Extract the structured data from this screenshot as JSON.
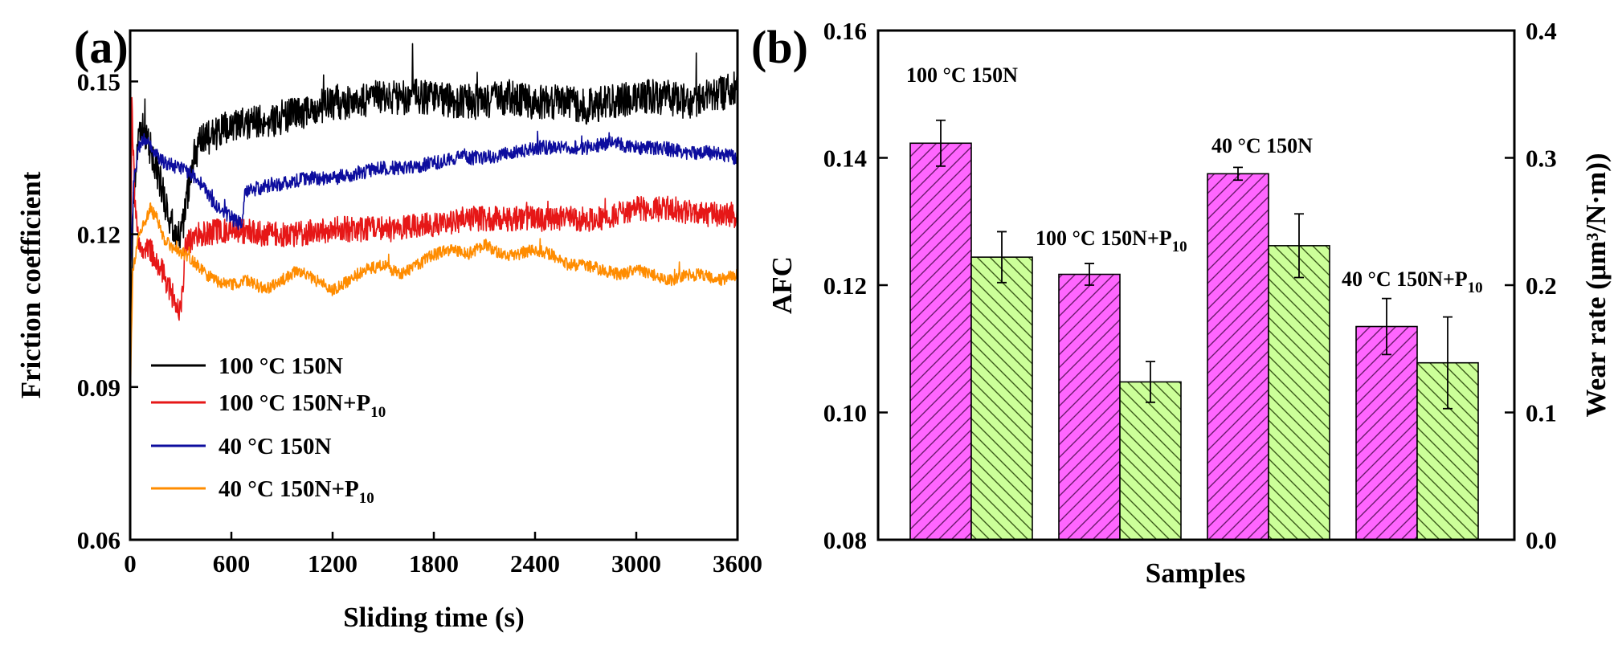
{
  "figure": {
    "panel_a_label": "(a)",
    "panel_b_label": "(b)"
  },
  "chart_data": [
    {
      "type": "line",
      "panel": "(a)",
      "xlabel": "Sliding time (s)",
      "ylabel": "Friction coefficient",
      "xlim": [
        0,
        3600
      ],
      "ylim": [
        0.06,
        0.16
      ],
      "xticks": [
        0,
        600,
        1200,
        1800,
        2400,
        3000,
        3600
      ],
      "yticks": [
        0.06,
        0.09,
        0.12,
        0.15
      ],
      "xtick_labels": [
        "0",
        "600",
        "1200",
        "1800",
        "2400",
        "3000",
        "3600"
      ],
      "ytick_labels": [
        "0.06",
        "0.09",
        "0.12",
        "0.15"
      ],
      "legend_position": "lower-left",
      "series": [
        {
          "name": "100 °C 150N",
          "label_main": "100 °C 150N",
          "label_sub": "",
          "color": "#000000",
          "noise": 0.0035,
          "x": [
            0,
            20,
            50,
            80,
            120,
            180,
            240,
            300,
            340,
            380,
            450,
            600,
            750,
            900,
            1050,
            1200,
            1350,
            1500,
            1650,
            1800,
            1950,
            2100,
            2250,
            2400,
            2550,
            2700,
            2850,
            3000,
            3150,
            3300,
            3450,
            3600
          ],
          "y": [
            0.097,
            0.128,
            0.138,
            0.141,
            0.137,
            0.13,
            0.122,
            0.119,
            0.128,
            0.136,
            0.139,
            0.141,
            0.142,
            0.143,
            0.144,
            0.146,
            0.146,
            0.147,
            0.147,
            0.147,
            0.146,
            0.146,
            0.147,
            0.146,
            0.146,
            0.145,
            0.146,
            0.147,
            0.147,
            0.146,
            0.147,
            0.149
          ]
        },
        {
          "name": "100 °C 150N+P10",
          "label_main": "100 °C 150N+P",
          "label_sub": "10",
          "color": "#e61717",
          "noise": 0.0025,
          "x": [
            0,
            10,
            30,
            60,
            100,
            150,
            200,
            250,
            300,
            330,
            400,
            600,
            800,
            1000,
            1200,
            1400,
            1600,
            1800,
            2000,
            2200,
            2400,
            2600,
            2800,
            3000,
            3200,
            3400,
            3600
          ],
          "y": [
            0.1,
            0.145,
            0.125,
            0.116,
            0.118,
            0.115,
            0.112,
            0.108,
            0.105,
            0.118,
            0.12,
            0.121,
            0.12,
            0.12,
            0.121,
            0.121,
            0.121,
            0.122,
            0.123,
            0.123,
            0.123,
            0.123,
            0.123,
            0.125,
            0.125,
            0.124,
            0.124
          ]
        },
        {
          "name": "40 °C 150N",
          "label_main": "40 °C 150N",
          "label_sub": "",
          "color": "#0d0d9e",
          "noise": 0.0014,
          "x": [
            0,
            20,
            50,
            80,
            120,
            200,
            300,
            400,
            500,
            600,
            660,
            680,
            750,
            900,
            1050,
            1200,
            1350,
            1500,
            1650,
            1800,
            1950,
            2100,
            2250,
            2400,
            2550,
            2700,
            2850,
            3000,
            3150,
            3300,
            3450,
            3600
          ],
          "y": [
            0.11,
            0.13,
            0.137,
            0.139,
            0.137,
            0.134,
            0.133,
            0.131,
            0.126,
            0.123,
            0.122,
            0.128,
            0.129,
            0.13,
            0.131,
            0.131,
            0.132,
            0.133,
            0.133,
            0.134,
            0.135,
            0.135,
            0.136,
            0.137,
            0.137,
            0.137,
            0.138,
            0.137,
            0.137,
            0.136,
            0.136,
            0.135
          ]
        },
        {
          "name": "40 °C 150N+P10",
          "label_main": "40 °C 150N+P",
          "label_sub": "10",
          "color": "#ff8c00",
          "noise": 0.0012,
          "x": [
            0,
            15,
            40,
            80,
            120,
            160,
            200,
            260,
            330,
            420,
            500,
            600,
            700,
            800,
            900,
            1000,
            1100,
            1200,
            1300,
            1400,
            1500,
            1600,
            1700,
            1800,
            1900,
            2000,
            2100,
            2200,
            2300,
            2400,
            2500,
            2600,
            2700,
            2800,
            2900,
            3000,
            3100,
            3200,
            3300,
            3400,
            3500,
            3600
          ],
          "y": [
            0.086,
            0.112,
            0.118,
            0.122,
            0.125,
            0.123,
            0.119,
            0.117,
            0.116,
            0.113,
            0.111,
            0.11,
            0.111,
            0.109,
            0.111,
            0.113,
            0.111,
            0.109,
            0.111,
            0.113,
            0.114,
            0.112,
            0.114,
            0.116,
            0.117,
            0.116,
            0.118,
            0.116,
            0.116,
            0.117,
            0.116,
            0.114,
            0.114,
            0.113,
            0.112,
            0.113,
            0.112,
            0.111,
            0.112,
            0.112,
            0.111,
            0.112
          ]
        }
      ]
    },
    {
      "type": "bar",
      "panel": "(b)",
      "xlabel": "Samples",
      "ylabel_left": "AFC",
      "ylabel_right": "Wear rate (μm³/N·m))",
      "ylim_left": [
        0.08,
        0.16
      ],
      "ylim_right": [
        0.0,
        0.4
      ],
      "yticks_left": [
        0.08,
        0.1,
        0.12,
        0.14,
        0.16
      ],
      "ytick_labels_left": [
        "0.08",
        "0.10",
        "0.12",
        "0.14",
        "0.16"
      ],
      "yticks_right": [
        0.0,
        0.1,
        0.2,
        0.3,
        0.4
      ],
      "ytick_labels_right": [
        "0.0",
        "0.1",
        "0.2",
        "0.3",
        "0.4"
      ],
      "categories": [
        "100 °C 150N",
        "100 °C 150N+P10",
        "40 °C 150N",
        "40 °C 150N+P10"
      ],
      "category_label_main": [
        "100 °C 150N",
        "100 °C 150N+P",
        "40 °C 150N",
        "40 °C 150N+P"
      ],
      "category_label_sub": [
        "",
        "10",
        "",
        "10"
      ],
      "series": [
        {
          "name": "AFC",
          "axis": "left",
          "fill": "#ff66ff",
          "hatch": "forward",
          "values": [
            0.1423,
            0.1217,
            0.1375,
            0.1135
          ],
          "errors": [
            0.0036,
            0.0017,
            0.001,
            0.0044
          ]
        },
        {
          "name": "Wear rate",
          "axis": "right",
          "fill": "#ccff99",
          "hatch": "back",
          "values": [
            0.222,
            0.124,
            0.231,
            0.139
          ],
          "errors": [
            0.02,
            0.016,
            0.025,
            0.036
          ]
        }
      ]
    }
  ]
}
